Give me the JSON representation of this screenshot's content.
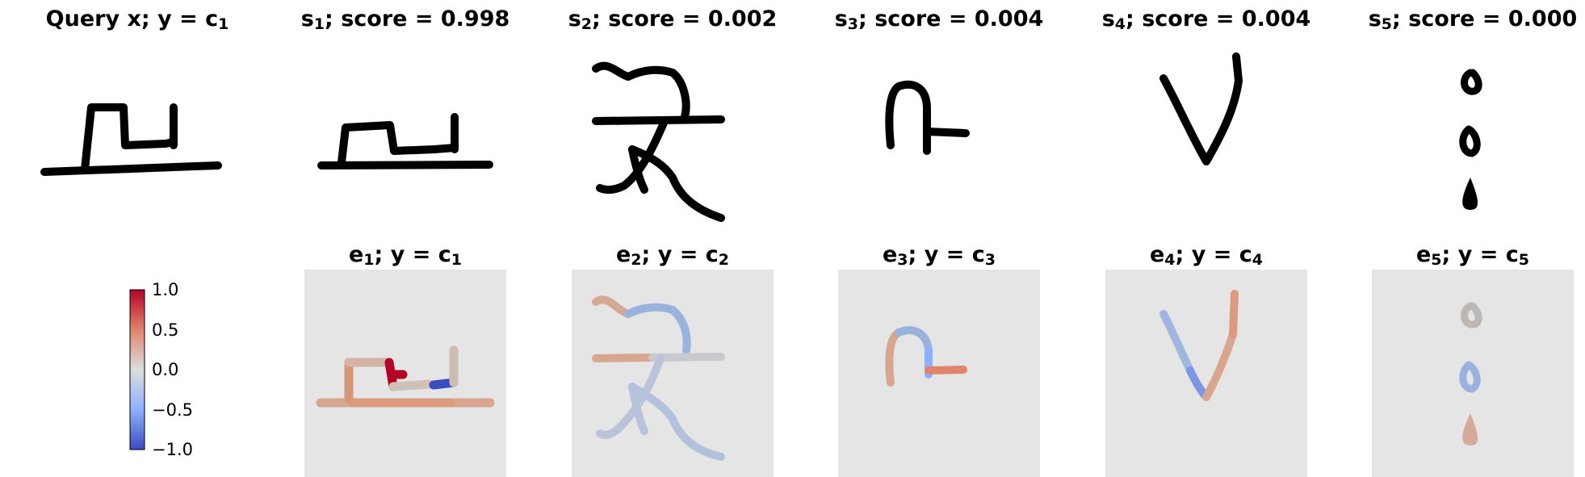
{
  "query": {
    "label": "Query x; y = c",
    "sub": "1"
  },
  "support": [
    {
      "label_pre": "s",
      "sub": "1",
      "label_post": "; score = 0.998",
      "glyph": "glyph-a"
    },
    {
      "label_pre": "s",
      "sub": "2",
      "label_post": "; score = 0.002",
      "glyph": "glyph-b"
    },
    {
      "label_pre": "s",
      "sub": "3",
      "label_post": "; score = 0.004",
      "glyph": "glyph-c"
    },
    {
      "label_pre": "s",
      "sub": "4",
      "label_post": "; score = 0.004",
      "glyph": "glyph-d"
    },
    {
      "label_pre": "s",
      "sub": "5",
      "label_post": "; score = 0.000",
      "glyph": "glyph-e"
    }
  ],
  "explanations": [
    {
      "label_pre": "e",
      "sub": "1",
      "label_mid": "; y = c",
      "sub2": "1"
    },
    {
      "label_pre": "e",
      "sub": "2",
      "label_mid": "; y = c",
      "sub2": "2"
    },
    {
      "label_pre": "e",
      "sub": "3",
      "label_mid": "; y = c",
      "sub2": "3"
    },
    {
      "label_pre": "e",
      "sub": "4",
      "label_mid": "; y = c",
      "sub2": "4"
    },
    {
      "label_pre": "e",
      "sub": "5",
      "label_mid": "; y = c",
      "sub2": "5"
    }
  ],
  "colorbar": {
    "ticks": [
      "1.0",
      "0.5",
      "0.0",
      "−0.5",
      "−1.0"
    ],
    "colors": {
      "max": "#b40426",
      "high": "#e0856c",
      "mid": "#dddddd",
      "low": "#8db0fe",
      "min": "#3b4cc0"
    }
  }
}
